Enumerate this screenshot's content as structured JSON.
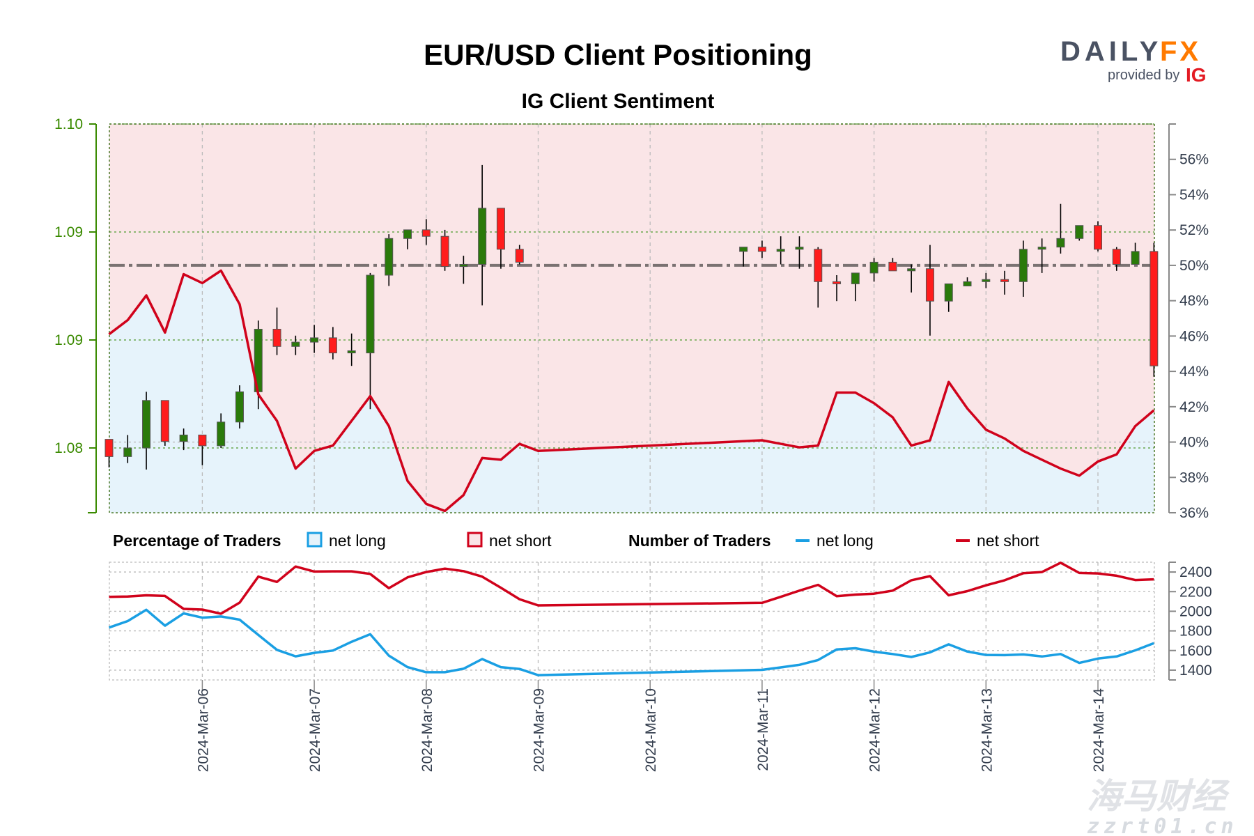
{
  "header": {
    "title": "EUR/USD Client Positioning",
    "subtitle": "IG Client Sentiment"
  },
  "logo": {
    "brand_left": "DAILY",
    "brand_right": "FX",
    "provided_by": "provided by",
    "ig": "IG"
  },
  "watermark": {
    "line1": "海马财经",
    "line2": "zzrt01.cn"
  },
  "legend": {
    "pct_heading": "Percentage of Traders",
    "pct_long": "net long",
    "pct_short": "net short",
    "num_heading": "Number of Traders",
    "num_long": "net long",
    "num_short": "net short"
  },
  "colors": {
    "net_long": "#1a9fe3",
    "net_short": "#d0021b",
    "long_fill": "#e6f3fb",
    "short_fill": "#fae5e7",
    "candle_up": "#2a7a0a",
    "candle_down": "#ff1c1c",
    "price_axis": "#3a8a00",
    "brand_dark": "#4a5263",
    "brand_orange": "#ff7a00",
    "ig_red": "#e31b23"
  },
  "chart_data": [
    {
      "type": "candlestick",
      "title": "EUR/USD Client Positioning",
      "subtitle": "IG Client Sentiment",
      "interval": "4h",
      "price_axis": {
        "side": "left",
        "ylim": [
          1.082,
          1.1
        ],
        "ticks": [
          1.1,
          1.095,
          1.09,
          1.085
        ],
        "tick_labels": [
          "1.10",
          "1.09",
          "1.09",
          "1.08"
        ]
      },
      "pct_axis": {
        "side": "right",
        "ylim": [
          36,
          58
        ],
        "ticks": [
          36,
          38,
          40,
          42,
          44,
          46,
          48,
          50,
          52,
          54,
          56
        ],
        "tick_labels": [
          "36%",
          "38%",
          "40%",
          "42%",
          "44%",
          "46%",
          "48%",
          "50%",
          "52%",
          "54%",
          "56%"
        ],
        "reference_line": 50
      },
      "x_tick_labels": [
        "2024-Mar-06",
        "2024-Mar-07",
        "2024-Mar-08",
        "2024-Mar-09",
        "2024-Mar-10",
        "2024-Mar-11",
        "2024-Mar-12",
        "2024-Mar-13",
        "2024-Mar-14"
      ],
      "grid": true,
      "candles_ohlc": [
        [
          "2024-03-05 04:00",
          1.0854,
          1.0854,
          1.0841,
          1.0846
        ],
        [
          "2024-03-05 08:00",
          1.0846,
          1.0856,
          1.0843,
          1.085
        ],
        [
          "2024-03-05 12:00",
          1.085,
          1.0876,
          1.084,
          1.0872
        ],
        [
          "2024-03-05 16:00",
          1.0872,
          1.0872,
          1.0851,
          1.0853
        ],
        [
          "2024-03-05 20:00",
          1.0853,
          1.0859,
          1.0849,
          1.0856
        ],
        [
          "2024-03-06 00:00",
          1.0856,
          1.0856,
          1.0842,
          1.0851
        ],
        [
          "2024-03-06 04:00",
          1.0851,
          1.0866,
          1.085,
          1.0862
        ],
        [
          "2024-03-06 08:00",
          1.0862,
          1.0879,
          1.0859,
          1.0876
        ],
        [
          "2024-03-06 12:00",
          1.0876,
          1.0909,
          1.0868,
          1.0905
        ],
        [
          "2024-03-06 16:00",
          1.0905,
          1.0915,
          1.0893,
          1.0897
        ],
        [
          "2024-03-06 20:00",
          1.0897,
          1.0902,
          1.0893,
          1.0899
        ],
        [
          "2024-03-07 00:00",
          1.0899,
          1.0907,
          1.0894,
          1.0901
        ],
        [
          "2024-03-07 04:00",
          1.0901,
          1.0906,
          1.0891,
          1.0894
        ],
        [
          "2024-03-07 08:00",
          1.0894,
          1.0903,
          1.0888,
          1.0895
        ],
        [
          "2024-03-07 12:00",
          1.0894,
          1.0931,
          1.0868,
          1.093
        ],
        [
          "2024-03-07 16:00",
          1.093,
          1.0949,
          1.0925,
          1.0947
        ],
        [
          "2024-03-07 20:00",
          1.0947,
          1.0951,
          1.0942,
          1.0951
        ],
        [
          "2024-03-08 00:00",
          1.0951,
          1.0956,
          1.0944,
          1.0948
        ],
        [
          "2024-03-08 04:00",
          1.0948,
          1.0951,
          1.0932,
          1.0934
        ],
        [
          "2024-03-08 08:00",
          1.0934,
          1.0939,
          1.0926,
          1.0935
        ],
        [
          "2024-03-08 12:00",
          1.0935,
          1.0981,
          1.0916,
          1.0961
        ],
        [
          "2024-03-08 16:00",
          1.0961,
          1.0961,
          1.0933,
          1.0942
        ],
        [
          "2024-03-08 20:00",
          1.0942,
          1.0944,
          1.0935,
          1.0936
        ],
        [
          "2024-03-10 20:00",
          1.0941,
          1.0943,
          1.0934,
          1.0943
        ],
        [
          "2024-03-11 00:00",
          1.0943,
          1.0946,
          1.0938,
          1.0941
        ],
        [
          "2024-03-11 04:00",
          1.0941,
          1.0948,
          1.0935,
          1.0942
        ],
        [
          "2024-03-11 08:00",
          1.0942,
          1.0948,
          1.0933,
          1.0943
        ],
        [
          "2024-03-11 12:00",
          1.0942,
          1.0943,
          1.0915,
          1.0927
        ],
        [
          "2024-03-11 16:00",
          1.0927,
          1.093,
          1.0918,
          1.0926
        ],
        [
          "2024-03-11 20:00",
          1.0926,
          1.0931,
          1.0918,
          1.0931
        ],
        [
          "2024-03-12 00:00",
          1.0931,
          1.0938,
          1.0927,
          1.0936
        ],
        [
          "2024-03-12 04:00",
          1.0936,
          1.0938,
          1.0932,
          1.0932
        ],
        [
          "2024-03-12 08:00",
          1.0932,
          1.0935,
          1.0922,
          1.0933
        ],
        [
          "2024-03-12 12:00",
          1.0933,
          1.0944,
          1.0902,
          1.0918
        ],
        [
          "2024-03-12 16:00",
          1.0918,
          1.0926,
          1.0913,
          1.0926
        ],
        [
          "2024-03-12 20:00",
          1.0925,
          1.0929,
          1.0925,
          1.0927
        ],
        [
          "2024-03-13 00:00",
          1.0927,
          1.0931,
          1.0924,
          1.0928
        ],
        [
          "2024-03-13 04:00",
          1.0928,
          1.0932,
          1.0921,
          1.0927
        ],
        [
          "2024-03-13 08:00",
          1.0927,
          1.0946,
          1.092,
          1.0942
        ],
        [
          "2024-03-13 12:00",
          1.0942,
          1.0947,
          1.0931,
          1.0943
        ],
        [
          "2024-03-13 16:00",
          1.0943,
          1.0963,
          1.094,
          1.0947
        ],
        [
          "2024-03-13 20:00",
          1.0947,
          1.0953,
          1.0946,
          1.0953
        ],
        [
          "2024-03-14 00:00",
          1.0953,
          1.0955,
          1.0941,
          1.0942
        ],
        [
          "2024-03-14 04:00",
          1.0942,
          1.0943,
          1.0932,
          1.0935
        ],
        [
          "2024-03-14 08:00",
          1.0935,
          1.0945,
          1.0935,
          1.0941
        ],
        [
          "2024-03-14 12:00",
          1.0941,
          1.0945,
          1.0883,
          1.0888
        ]
      ],
      "x": [
        "2024-03-05 04:00",
        "2024-03-05 08:00",
        "2024-03-05 12:00",
        "2024-03-05 16:00",
        "2024-03-05 20:00",
        "2024-03-06 00:00",
        "2024-03-06 04:00",
        "2024-03-06 08:00",
        "2024-03-06 12:00",
        "2024-03-06 16:00",
        "2024-03-06 20:00",
        "2024-03-07 00:00",
        "2024-03-07 04:00",
        "2024-03-07 08:00",
        "2024-03-07 12:00",
        "2024-03-07 16:00",
        "2024-03-07 20:00",
        "2024-03-08 00:00",
        "2024-03-08 04:00",
        "2024-03-08 08:00",
        "2024-03-08 12:00",
        "2024-03-08 16:00",
        "2024-03-08 20:00",
        "2024-03-09 00:00",
        "2024-03-11 00:00",
        "2024-03-11 04:00",
        "2024-03-11 08:00",
        "2024-03-11 12:00",
        "2024-03-11 16:00",
        "2024-03-11 20:00",
        "2024-03-12 00:00",
        "2024-03-12 04:00",
        "2024-03-12 08:00",
        "2024-03-12 12:00",
        "2024-03-12 16:00",
        "2024-03-12 20:00",
        "2024-03-13 00:00",
        "2024-03-13 04:00",
        "2024-03-13 08:00",
        "2024-03-13 12:00",
        "2024-03-13 16:00",
        "2024-03-13 20:00",
        "2024-03-14 00:00",
        "2024-03-14 04:00",
        "2024-03-14 08:00",
        "2024-03-14 12:00"
      ],
      "series": [
        {
          "name": "net long",
          "unit": "%",
          "values": [
            46.1,
            46.9,
            48.3,
            46.2,
            49.5,
            49.0,
            49.7,
            47.8,
            42.7,
            41.2,
            38.5,
            39.5,
            39.8,
            41.2,
            42.6,
            40.9,
            37.8,
            36.5,
            36.1,
            37.0,
            39.1,
            39.0,
            39.9,
            39.5,
            40.1,
            39.9,
            39.7,
            39.8,
            42.8,
            42.8,
            42.2,
            41.4,
            39.8,
            40.1,
            43.4,
            41.9,
            40.7,
            40.2,
            39.5,
            39.0,
            38.5,
            38.1,
            38.9,
            39.3,
            40.9,
            41.8
          ]
        }
      ]
    },
    {
      "type": "line",
      "yaxis": {
        "side": "right",
        "ylim": [
          1300,
          2500
        ],
        "ticks": [
          1400,
          1600,
          1800,
          2000,
          2200,
          2400
        ],
        "tick_labels": [
          "1400",
          "1600",
          "1800",
          "2000",
          "2200",
          "2400"
        ]
      },
      "grid": true,
      "series": [
        {
          "name": "net long",
          "values": [
            1834,
            1900,
            2015,
            1853,
            1978,
            1935,
            1947,
            1914,
            1759,
            1607,
            1541,
            1576,
            1600,
            1689,
            1766,
            1548,
            1431,
            1379,
            1379,
            1414,
            1513,
            1431,
            1412,
            1349,
            1403,
            1428,
            1454,
            1503,
            1611,
            1623,
            1588,
            1564,
            1534,
            1581,
            1663,
            1590,
            1555,
            1553,
            1560,
            1539,
            1564,
            1473,
            1518,
            1539,
            1602,
            1675
          ]
        },
        {
          "name": "net short",
          "values": [
            2147,
            2151,
            2163,
            2156,
            2024,
            2017,
            1975,
            2088,
            2353,
            2299,
            2456,
            2405,
            2407,
            2407,
            2381,
            2235,
            2346,
            2400,
            2435,
            2409,
            2353,
            2240,
            2123,
            2060,
            2086,
            2147,
            2210,
            2269,
            2154,
            2170,
            2179,
            2210,
            2316,
            2358,
            2163,
            2205,
            2264,
            2316,
            2388,
            2400,
            2494,
            2391,
            2386,
            2362,
            2318,
            2325
          ]
        }
      ]
    }
  ]
}
